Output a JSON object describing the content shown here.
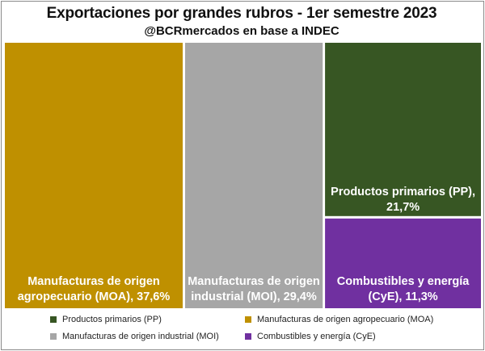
{
  "header": {
    "title": "Exportaciones por grandes rubros - 1er semestre 2023",
    "subtitle": "@BCRmercados en base a INDEC"
  },
  "colors": {
    "pp": "#375623",
    "moa": "#BF9000",
    "moi": "#A6A6A6",
    "cye": "#7030A0",
    "label_text": "#ffffff"
  },
  "legend": [
    {
      "label": "Productos primarios (PP)",
      "color": "#375623"
    },
    {
      "label": "Manufacturas de origen agropecuario (MOA)",
      "color": "#BF9000"
    },
    {
      "label": "Manufacturas de origen industrial (MOI)",
      "color": "#A6A6A6"
    },
    {
      "label": "Combustibles y energía (CyE)",
      "color": "#7030A0"
    }
  ],
  "chart_data": {
    "type": "treemap",
    "title": "Exportaciones por grandes rubros - 1er semestre 2023",
    "subtitle": "@BCRmercados en base a INDEC",
    "unit": "%",
    "legend_position": "bottom",
    "series": [
      {
        "key": "moa",
        "name": "Manufacturas de origen agropecuario (MOA)",
        "value": 37.6,
        "color": "#BF9000",
        "label_lines": [
          "Manufacturas de origen",
          "agropecuario (MOA), 37,6%"
        ]
      },
      {
        "key": "moi",
        "name": "Manufacturas de origen industrial (MOI)",
        "value": 29.4,
        "color": "#A6A6A6",
        "label_lines": [
          "Manufacturas de origen",
          "industrial (MOI), 29,4%"
        ]
      },
      {
        "key": "pp",
        "name": "Productos primarios (PP)",
        "value": 21.7,
        "color": "#375623",
        "label_lines": [
          "Productos primarios (PP),",
          "21,7%"
        ]
      },
      {
        "key": "cye",
        "name": "Combustibles y energía (CyE)",
        "value": 11.3,
        "color": "#7030A0",
        "label_lines": [
          "Combustibles y energía",
          "(CyE), 11,3%"
        ]
      }
    ]
  }
}
